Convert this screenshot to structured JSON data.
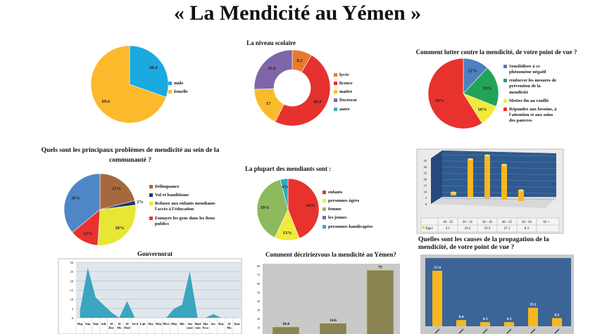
{
  "title": "« La Mendicité au Yémen »",
  "chart_data": [
    {
      "id": "sexe",
      "type": "pie",
      "title": "",
      "labels": [
        "mâle",
        "femelle"
      ],
      "values": [
        30.4,
        69.6
      ],
      "value_labels": [
        "30.4",
        "69.6"
      ],
      "colors": [
        "#1ba9e0",
        "#fbb92b"
      ]
    },
    {
      "id": "niveau",
      "type": "pie",
      "donut": true,
      "title": "La niveau scolaire",
      "labels": [
        "lycée",
        "licence",
        "maitre",
        "Doctorat",
        "autre"
      ],
      "values": [
        8.5,
        48.9,
        17,
        25.6,
        0
      ],
      "value_labels": [
        "8.5",
        "48.9",
        "17",
        "25.6",
        ""
      ],
      "colors": [
        "#e87a30",
        "#e5322f",
        "#f9bb2c",
        "#7f66a8",
        "#46aac4"
      ]
    },
    {
      "id": "lutter",
      "type": "pie",
      "title": "Comment lutter contre la mendicité, de votre point de vue ?",
      "labels": [
        "Sensibiliser à ce phénomène négatif",
        "renforcer les mesures de prévention de la mendicité",
        "Mettre fin au conflit",
        "Répondre aux besoins, à l'attention et aux soins des pauvres"
      ],
      "values": [
        12,
        19,
        10,
        59
      ],
      "value_labels": [
        "12%",
        "19%",
        "10%",
        "59%"
      ],
      "colors": [
        "#4e7fc0",
        "#21a457",
        "#f2ea3b",
        "#e8322e"
      ]
    },
    {
      "id": "problemes",
      "type": "pie",
      "title": "Quels sont les principaux problèmes de mendicité au sein de la communauté ?",
      "labels": [
        "Délinquance",
        "Vol et banditisme",
        "Refuser aux enfants mendiants l'accès à l'éducation",
        "Ennuyer les gens dans les lieux publics",
        ""
      ],
      "values": [
        21,
        2,
        28,
        13,
        36
      ],
      "value_labels": [
        "21%",
        "2%",
        "28%",
        "13%",
        "36%"
      ],
      "colors": [
        "#a5693d",
        "#1f3864",
        "#e8e635",
        "#e8322e",
        "#4f86c6"
      ]
    },
    {
      "id": "mendiants",
      "type": "pie",
      "title": "La plupart des mendiants sont :",
      "labels": [
        "enfants",
        "personnes âgées",
        "femme",
        "les jeunes",
        "personnes handicapées"
      ],
      "values": [
        44,
        13,
        39,
        0,
        4
      ],
      "value_labels": [
        "44%",
        "13%",
        "39%",
        "",
        "4%"
      ],
      "colors": [
        "#e8322e",
        "#f2ea3b",
        "#8dba5f",
        "#7f66a8",
        "#2fa7c4"
      ]
    },
    {
      "id": "age",
      "type": "bar3d",
      "series_name": "Âge2",
      "categories": [
        "18 - 25",
        "26 - 35",
        "36 - 45",
        "46 - 55",
        "56 - 65",
        "65 +"
      ],
      "values": [
        2.1,
        29.2,
        33.3,
        27.1,
        8.3,
        null
      ],
      "value_labels": [
        "2.1",
        "29.2",
        "33.3",
        "27.1",
        "8.3",
        ""
      ],
      "ylim": [
        0,
        35
      ],
      "yticks": [
        "0",
        "5",
        "10",
        "15",
        "20",
        "25",
        "30",
        "35"
      ]
    },
    {
      "id": "gouvernorat",
      "type": "area",
      "title": "Gouvernorat",
      "categories": [
        "Haj",
        "San",
        "Taiz",
        "Ade",
        "Al Bay",
        "Al Ma",
        "Al Hud",
        "Sa'd",
        "Lah",
        "Aby",
        "Dha",
        "Ma'r",
        "Dha",
        "Ibb",
        "Am anat",
        "Had ram",
        "Sha bwa",
        "Soc",
        "Ray",
        "Al Ma",
        "Amr"
      ],
      "values": [
        4,
        27,
        11,
        7,
        3,
        0,
        9,
        0,
        0,
        0,
        0,
        0,
        5,
        7,
        25,
        0,
        0,
        2,
        0,
        0,
        0
      ],
      "ylim": [
        0,
        30
      ],
      "yticks": [
        "0",
        "5",
        "10",
        "15",
        "20",
        "25",
        "30"
      ]
    },
    {
      "id": "decrire",
      "type": "bar",
      "title": "Comment décririezvous la mendicité au Yémen?",
      "values": [
        10.4,
        14.6,
        75
      ],
      "value_labels": [
        "10.4",
        "14.6",
        "75"
      ],
      "ylim": [
        0,
        80
      ],
      "yticks": [
        "0",
        "10",
        "20",
        "30",
        "40",
        "50",
        "60",
        "70",
        "80"
      ]
    },
    {
      "id": "causes",
      "type": "bar",
      "title": "Quelles sont les causes de la propagation de la mendicité, de votre point de vue ?",
      "values": [
        57.4,
        6.4,
        4.3,
        4.3,
        19.1,
        8.5
      ],
      "value_labels": [
        "57.4",
        "6.4",
        "4.3",
        "4.3",
        "19.1",
        "8.5"
      ],
      "ylim": [
        0,
        65
      ]
    }
  ]
}
